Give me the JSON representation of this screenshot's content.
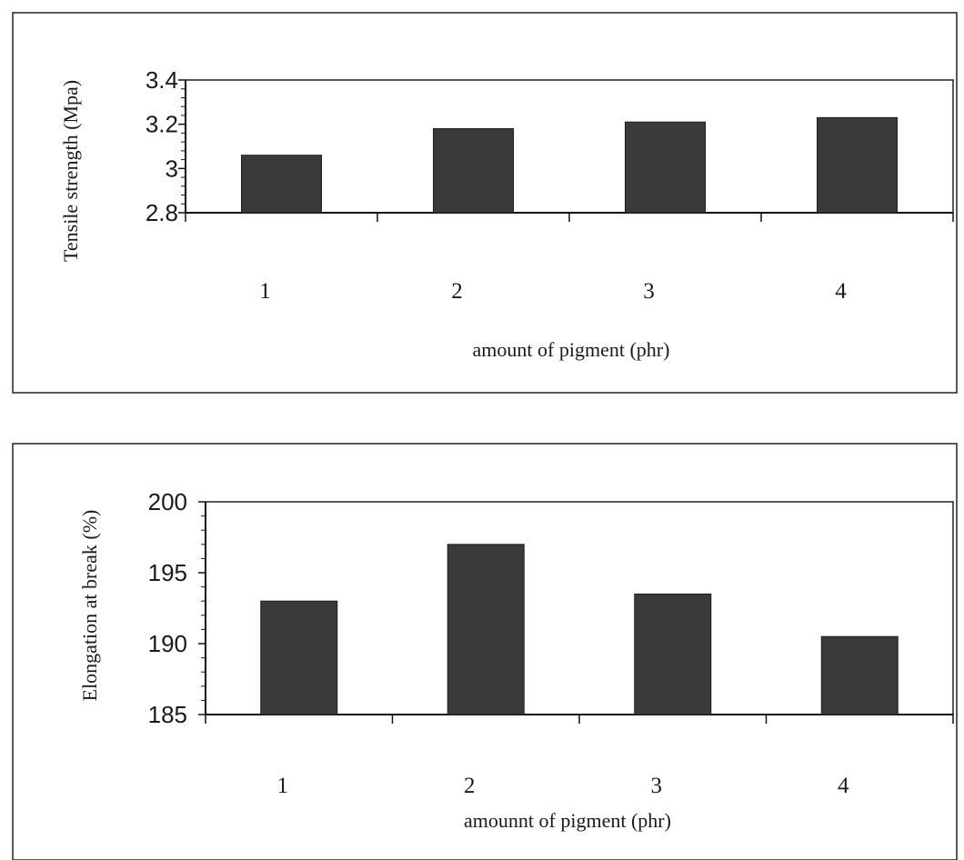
{
  "chart_data": [
    {
      "type": "bar",
      "categories": [
        "1",
        "2",
        "3",
        "4"
      ],
      "values": [
        3.06,
        3.18,
        3.21,
        3.23
      ],
      "xlabel": "amount of pigment (phr)",
      "ylabel": "Tensile strength  (Mpa)",
      "ylim": [
        2.8,
        3.4
      ],
      "yticks": [
        "2.8",
        "3",
        "3.2",
        "3.4"
      ],
      "grid": false,
      "bar_color": "#3a3a3a"
    },
    {
      "type": "bar",
      "categories": [
        "1",
        "2",
        "3",
        "4"
      ],
      "values": [
        193,
        197,
        193.5,
        190.5
      ],
      "xlabel": "amounnt of pigment (phr)",
      "ylabel": "Elongation at break (%)",
      "ylim": [
        185,
        200
      ],
      "yticks": [
        "185",
        "190",
        "195",
        "200"
      ],
      "grid": false,
      "bar_color": "#3a3a3a"
    }
  ]
}
